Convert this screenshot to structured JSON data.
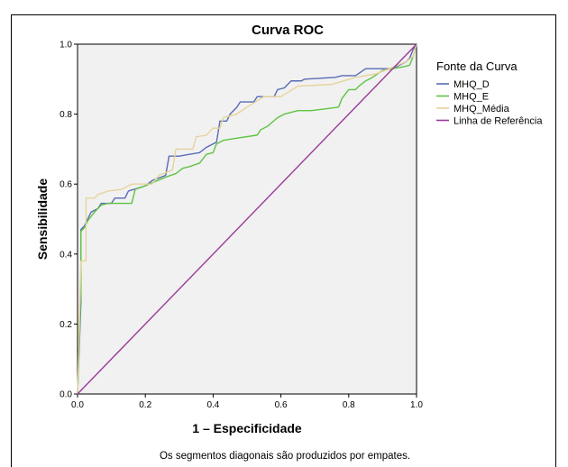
{
  "chart_data": {
    "type": "line",
    "title": "Curva ROC",
    "xlabel": "1 – Especificidade",
    "ylabel": "Sensibilidade",
    "xlim": [
      0,
      1
    ],
    "ylim": [
      0,
      1
    ],
    "x_ticks": [
      "0.0",
      "0.2",
      "0.4",
      "0.6",
      "0.8",
      "1.0"
    ],
    "y_ticks": [
      "0.0",
      "0.2",
      "0.4",
      "0.6",
      "0.8",
      "1.0"
    ],
    "grid": false,
    "legend_title": "Fonte da Curva",
    "legend_position": "right",
    "footnote": "Os segmentos diagonais são produzidos por empates.",
    "series": [
      {
        "name": "MHQ_D",
        "color": "#5a6bb5",
        "points": [
          [
            0.0,
            0.0
          ],
          [
            0.01,
            0.26
          ],
          [
            0.01,
            0.47
          ],
          [
            0.02,
            0.48
          ],
          [
            0.03,
            0.5
          ],
          [
            0.04,
            0.52
          ],
          [
            0.06,
            0.53
          ],
          [
            0.07,
            0.545
          ],
          [
            0.1,
            0.545
          ],
          [
            0.11,
            0.56
          ],
          [
            0.14,
            0.56
          ],
          [
            0.15,
            0.58
          ],
          [
            0.2,
            0.595
          ],
          [
            0.22,
            0.61
          ],
          [
            0.26,
            0.625
          ],
          [
            0.27,
            0.68
          ],
          [
            0.3,
            0.68
          ],
          [
            0.33,
            0.685
          ],
          [
            0.36,
            0.69
          ],
          [
            0.38,
            0.705
          ],
          [
            0.41,
            0.72
          ],
          [
            0.42,
            0.78
          ],
          [
            0.44,
            0.78
          ],
          [
            0.45,
            0.8
          ],
          [
            0.47,
            0.82
          ],
          [
            0.48,
            0.835
          ],
          [
            0.52,
            0.835
          ],
          [
            0.53,
            0.85
          ],
          [
            0.58,
            0.85
          ],
          [
            0.59,
            0.87
          ],
          [
            0.61,
            0.875
          ],
          [
            0.63,
            0.895
          ],
          [
            0.66,
            0.895
          ],
          [
            0.67,
            0.9
          ],
          [
            0.76,
            0.905
          ],
          [
            0.78,
            0.91
          ],
          [
            0.82,
            0.91
          ],
          [
            0.85,
            0.93
          ],
          [
            0.93,
            0.93
          ],
          [
            0.97,
            0.95
          ],
          [
            0.98,
            0.96
          ],
          [
            0.99,
            0.985
          ],
          [
            1.0,
            1.0
          ]
        ]
      },
      {
        "name": "MHQ_E",
        "color": "#5ec444",
        "points": [
          [
            0.0,
            0.0
          ],
          [
            0.01,
            0.3
          ],
          [
            0.01,
            0.465
          ],
          [
            0.02,
            0.475
          ],
          [
            0.03,
            0.495
          ],
          [
            0.05,
            0.52
          ],
          [
            0.07,
            0.54
          ],
          [
            0.09,
            0.545
          ],
          [
            0.16,
            0.545
          ],
          [
            0.17,
            0.585
          ],
          [
            0.2,
            0.595
          ],
          [
            0.26,
            0.62
          ],
          [
            0.29,
            0.63
          ],
          [
            0.31,
            0.645
          ],
          [
            0.33,
            0.65
          ],
          [
            0.36,
            0.66
          ],
          [
            0.38,
            0.685
          ],
          [
            0.4,
            0.69
          ],
          [
            0.41,
            0.715
          ],
          [
            0.43,
            0.725
          ],
          [
            0.46,
            0.73
          ],
          [
            0.53,
            0.74
          ],
          [
            0.54,
            0.755
          ],
          [
            0.56,
            0.765
          ],
          [
            0.59,
            0.79
          ],
          [
            0.61,
            0.8
          ],
          [
            0.65,
            0.81
          ],
          [
            0.69,
            0.81
          ],
          [
            0.73,
            0.815
          ],
          [
            0.77,
            0.82
          ],
          [
            0.78,
            0.845
          ],
          [
            0.8,
            0.87
          ],
          [
            0.82,
            0.87
          ],
          [
            0.83,
            0.88
          ],
          [
            0.85,
            0.895
          ],
          [
            0.87,
            0.905
          ],
          [
            0.9,
            0.925
          ],
          [
            0.96,
            0.935
          ],
          [
            0.98,
            0.94
          ],
          [
            0.99,
            0.965
          ],
          [
            1.0,
            1.0
          ]
        ]
      },
      {
        "name": "MHQ_Média",
        "color": "#e6d39c",
        "points": [
          [
            0.0,
            0.0
          ],
          [
            0.01,
            0.38
          ],
          [
            0.025,
            0.38
          ],
          [
            0.025,
            0.56
          ],
          [
            0.05,
            0.56
          ],
          [
            0.06,
            0.57
          ],
          [
            0.09,
            0.58
          ],
          [
            0.13,
            0.585
          ],
          [
            0.16,
            0.6
          ],
          [
            0.22,
            0.6
          ],
          [
            0.24,
            0.625
          ],
          [
            0.28,
            0.64
          ],
          [
            0.29,
            0.7
          ],
          [
            0.34,
            0.7
          ],
          [
            0.35,
            0.735
          ],
          [
            0.38,
            0.74
          ],
          [
            0.4,
            0.76
          ],
          [
            0.42,
            0.76
          ],
          [
            0.43,
            0.79
          ],
          [
            0.47,
            0.8
          ],
          [
            0.5,
            0.82
          ],
          [
            0.55,
            0.85
          ],
          [
            0.6,
            0.85
          ],
          [
            0.65,
            0.88
          ],
          [
            0.75,
            0.885
          ],
          [
            0.82,
            0.905
          ],
          [
            0.88,
            0.915
          ],
          [
            0.92,
            0.93
          ],
          [
            0.97,
            0.95
          ],
          [
            0.99,
            0.965
          ],
          [
            1.0,
            1.0
          ]
        ]
      },
      {
        "name": "Linha de Referência",
        "color": "#9a3a9a",
        "points": [
          [
            0.0,
            0.0
          ],
          [
            1.0,
            1.0
          ]
        ]
      }
    ]
  }
}
